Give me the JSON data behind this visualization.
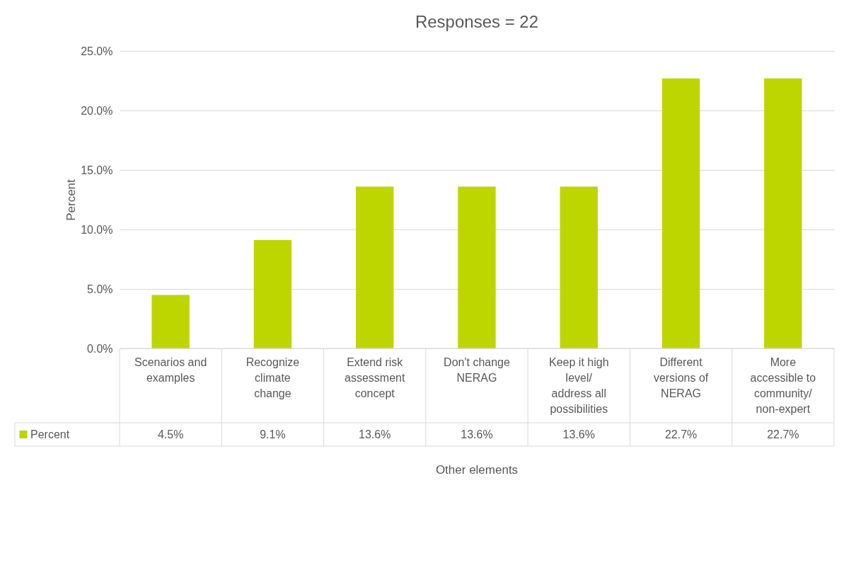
{
  "chart_data": {
    "type": "bar",
    "title": "Responses = 22",
    "xlabel": "Other elements",
    "ylabel": "Percent",
    "categories": [
      "Scenarios and examples",
      "Recognize climate change",
      "Extend risk assessment concept",
      "Don't change NERAG",
      "Keep it high level/ address all possibilities",
      "Different versions of NERAG",
      "More accessible to community/ non-expert"
    ],
    "series": [
      {
        "name": "Percent",
        "color": "#bed600",
        "values": [
          4.5,
          9.1,
          13.6,
          13.6,
          13.6,
          22.7,
          22.7
        ],
        "value_labels": [
          "4.5%",
          "9.1%",
          "13.6%",
          "13.6%",
          "13.6%",
          "22.7%",
          "22.7%"
        ]
      }
    ],
    "ylim": [
      0,
      25
    ],
    "yticks": [
      {
        "value": 0,
        "label": "0.0%"
      },
      {
        "value": 5,
        "label": "5.0%"
      },
      {
        "value": 10,
        "label": "10.0%"
      },
      {
        "value": 15,
        "label": "15.0%"
      },
      {
        "value": 20,
        "label": "20.0%"
      },
      {
        "value": 25,
        "label": "25.0%"
      }
    ],
    "grid": "y",
    "legend": "bottom left"
  }
}
